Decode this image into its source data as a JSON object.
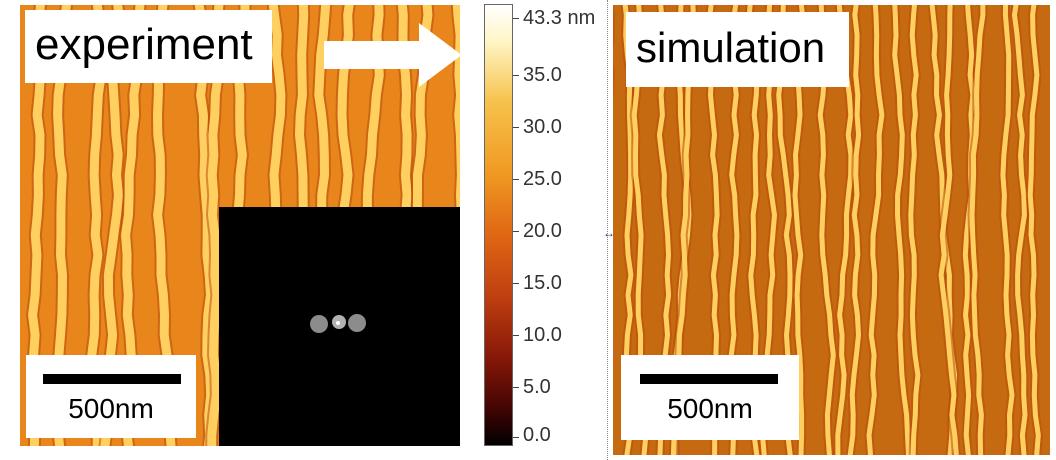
{
  "experiment_panel": {
    "label": "experiment",
    "scalebar": "500nm"
  },
  "simulation_panel": {
    "label": "simulation",
    "scalebar": "500nm"
  },
  "colorbar": {
    "top_label": "43.3 nm",
    "ticks": [
      "35.0",
      "30.0",
      "25.0",
      "20.0",
      "15.0",
      "10.0",
      "5.0",
      "0.0"
    ]
  },
  "colors": {
    "stripe_light": "#ffd060",
    "stripe_mid": "#ef9126",
    "stripe_dark": "#b84a0c",
    "inset_bg": "#000000"
  }
}
